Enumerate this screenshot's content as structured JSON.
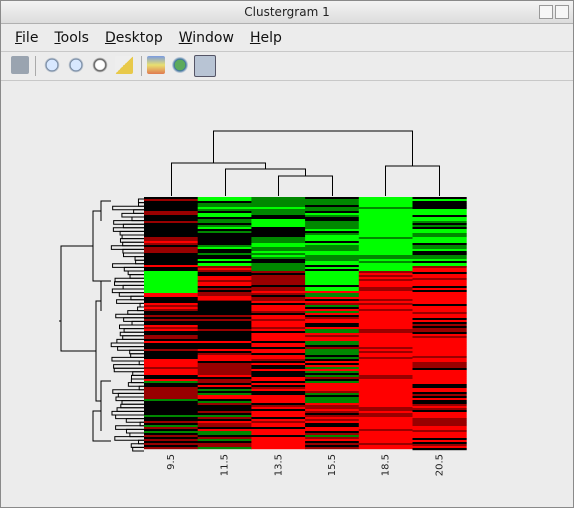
{
  "window": {
    "title": "Clustergram 1"
  },
  "menu": [
    "File",
    "Tools",
    "Desktop",
    "Window",
    "Help"
  ],
  "heatmap": {
    "column_labels": [
      "9.5",
      "11.5",
      "13.5",
      "15.5",
      "18.5",
      "20.5"
    ]
  }
}
